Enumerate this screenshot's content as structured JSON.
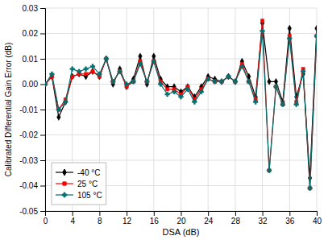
{
  "chart_data": {
    "type": "line",
    "xlabel": "DSA (dB)",
    "ylabel": "Calibrated Differential Gain Error (dB)",
    "x": [
      0,
      1,
      2,
      3,
      4,
      5,
      6,
      7,
      8,
      9,
      10,
      11,
      12,
      13,
      14,
      15,
      16,
      17,
      18,
      19,
      20,
      21,
      22,
      23,
      24,
      25,
      26,
      27,
      28,
      29,
      30,
      31,
      32,
      33,
      34,
      35,
      36,
      37,
      38,
      39,
      40
    ],
    "xlim": [
      0,
      40
    ],
    "xticks": [
      0,
      4,
      8,
      12,
      16,
      20,
      24,
      28,
      32,
      36,
      40
    ],
    "ylim": [
      -0.05,
      0.03
    ],
    "yticks": [
      -0.05,
      -0.04,
      -0.03,
      -0.02,
      -0.01,
      {
        "value": 0.0,
        "label": "0.00"
      },
      0.01,
      0.02,
      0.03
    ],
    "grid": true,
    "legend": "lower left",
    "series": [
      {
        "name": "-40 °C",
        "color": "#000000",
        "marker": "diamond",
        "values": [
          0.0,
          0.003,
          -0.013,
          -0.007,
          0.003,
          0.004,
          0.003,
          0.005,
          0.003,
          0.01,
          0.0,
          0.006,
          -0.001,
          0.002,
          0.011,
          0.0,
          0.011,
          0.002,
          -0.001,
          -0.001,
          -0.003,
          -0.001,
          -0.005,
          -0.001,
          0.003,
          0.002,
          0.001,
          0.003,
          0.001,
          0.009,
          0.003,
          -0.005,
          0.024,
          0.001,
          0.001,
          -0.007,
          0.022,
          -0.005,
          0.004,
          -0.037,
          0.022
        ]
      },
      {
        "name": "25 °C",
        "color": "#ff0000",
        "marker": "square",
        "values": [
          0.0,
          0.003,
          -0.01,
          -0.006,
          0.003,
          0.004,
          0.004,
          0.005,
          0.003,
          0.01,
          0.001,
          0.005,
          -0.001,
          0.001,
          0.009,
          0.001,
          0.009,
          0.001,
          -0.002,
          -0.002,
          -0.004,
          -0.001,
          -0.006,
          -0.002,
          0.002,
          0.001,
          0.001,
          0.003,
          0.001,
          0.008,
          0.001,
          -0.006,
          0.025,
          -0.034,
          -0.001,
          -0.008,
          0.019,
          -0.007,
          0.006,
          -0.041,
          0.019
        ]
      },
      {
        "name": "105 °C",
        "color": "#007070",
        "marker": "plus",
        "values": [
          0.0,
          0.004,
          -0.01,
          -0.007,
          0.006,
          0.005,
          0.006,
          0.007,
          0.004,
          0.01,
          0.001,
          0.005,
          0.0,
          0.001,
          0.008,
          0.001,
          0.009,
          0.0,
          -0.004,
          -0.003,
          -0.005,
          -0.002,
          -0.007,
          -0.003,
          0.002,
          0.001,
          0.001,
          0.003,
          0.001,
          0.007,
          0.001,
          -0.007,
          0.021,
          -0.034,
          -0.001,
          -0.008,
          0.018,
          -0.008,
          0.005,
          -0.041,
          0.019
        ]
      }
    ]
  }
}
